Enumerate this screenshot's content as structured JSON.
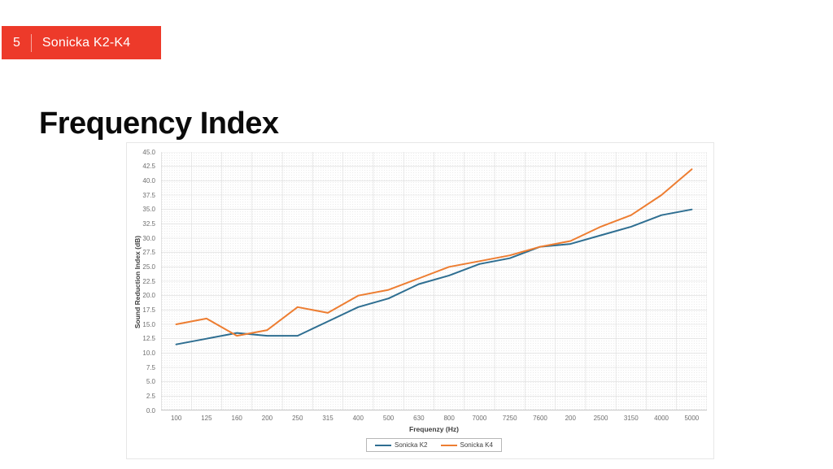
{
  "slide": {
    "badge": {
      "number": "5",
      "title": "Sonicka K2-K4",
      "bg_color": "#ED3A2A"
    },
    "title": "Frequency Index"
  },
  "chart_data": {
    "type": "line",
    "title": "",
    "xlabel": "Frequenzy (Hz)",
    "ylabel": "Sound Reduction Index (dB)",
    "categories": [
      "100",
      "125",
      "160",
      "200",
      "250",
      "315",
      "400",
      "500",
      "630",
      "800",
      "7000",
      "7250",
      "7600",
      "200",
      "2500",
      "3150",
      "4000",
      "5000"
    ],
    "series": [
      {
        "name": "Sonicka K2",
        "color": "#2E6E91",
        "values": [
          11.5,
          12.5,
          13.5,
          13,
          13,
          15.5,
          18,
          19.5,
          22,
          23.5,
          25.5,
          26.5,
          28.5,
          29,
          30.5,
          32,
          34,
          35
        ]
      },
      {
        "name": "Sonicka K4",
        "color": "#ED7D31",
        "values": [
          15,
          16,
          13,
          14,
          18,
          17,
          20,
          21,
          23,
          25,
          26,
          27,
          28.5,
          29.5,
          32,
          34,
          37.5,
          42
        ]
      }
    ],
    "ylim": [
      0,
      45
    ],
    "ytick_step": 2.5,
    "ytick_decimals": 1,
    "grid": true,
    "legend_position": "bottom",
    "gridline_color": "#dcdcdc",
    "axisline_color": "#c6c6c6"
  }
}
